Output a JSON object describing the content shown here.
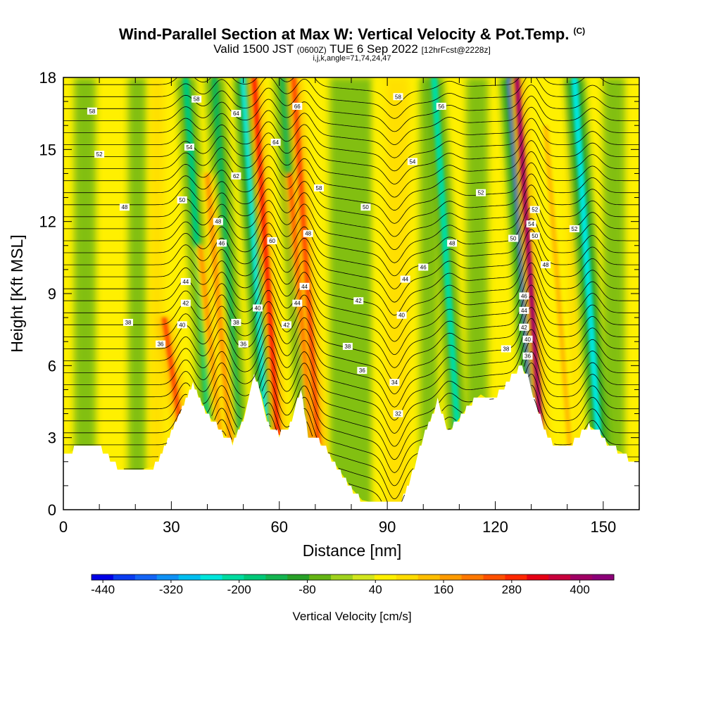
{
  "header": {
    "title": "Wind-Parallel Section at Max W: Vertical Velocity & Pot.Temp.",
    "copyright": "(C)",
    "valid_main": "Valid 1500 JST",
    "valid_utc": "(0600Z)",
    "valid_date": "TUE 6 Sep 2022",
    "forecast": "[12hrFcst@2228z]",
    "indices": "i,j,k,angle=71,74,24,47"
  },
  "chart_data": {
    "type": "heatmap",
    "title": "Wind-Parallel Section at Max W: Vertical Velocity & Pot.Temp.",
    "xlabel": "Distance [nm]",
    "ylabel": "Height [Kft MSL]",
    "xlim": [
      0,
      160
    ],
    "ylim": [
      0,
      18
    ],
    "xticks": [
      0,
      30,
      60,
      90,
      120,
      150
    ],
    "yticks": [
      0,
      3,
      6,
      9,
      12,
      15,
      18
    ],
    "colorbar": {
      "label": "Vertical Velocity [cm/s]",
      "tick_labels": [
        -440,
        -320,
        -200,
        -80,
        40,
        160,
        280,
        400
      ],
      "min": -460,
      "max": 460,
      "colors": [
        "#0000e6",
        "#0a3cf0",
        "#1464f5",
        "#0f91f5",
        "#00bef0",
        "#00e6dc",
        "#00dca0",
        "#00c878",
        "#14b450",
        "#28a028",
        "#64b414",
        "#a0d21e",
        "#d2e61e",
        "#fff000",
        "#ffdc00",
        "#ffbe00",
        "#ff9b00",
        "#ff7800",
        "#ff5000",
        "#ff2800",
        "#e60014",
        "#c8003c",
        "#a00064",
        "#8c0078"
      ]
    },
    "terrain_kft": {
      "x": [
        0,
        4,
        8,
        10,
        15,
        18,
        20,
        25,
        28,
        30,
        33,
        36,
        40,
        44,
        47,
        50,
        53,
        55,
        57,
        60,
        63,
        66,
        68,
        70,
        73,
        76,
        80,
        83,
        86,
        90,
        94,
        97,
        100,
        104,
        107,
        110,
        113,
        116,
        119,
        122,
        125,
        127,
        129,
        131,
        134,
        137,
        140,
        143,
        146,
        149,
        152,
        155,
        158,
        160
      ],
      "y": [
        2.2,
        2.6,
        2.6,
        2.6,
        1.8,
        1.6,
        1.6,
        1.8,
        2.5,
        3.2,
        4.2,
        5.2,
        4.0,
        3.2,
        2.8,
        3.8,
        5.6,
        4.8,
        3.5,
        3.1,
        3.5,
        5.0,
        3.0,
        3.0,
        2.5,
        1.8,
        0.9,
        0.4,
        0.3,
        0.3,
        0.3,
        1.5,
        3.0,
        4.5,
        3.2,
        3.8,
        4.4,
        4.8,
        4.5,
        5.0,
        5.6,
        6.0,
        5.5,
        4.5,
        3.2,
        2.6,
        2.5,
        3.0,
        3.5,
        3.2,
        2.6,
        2.4,
        2.0,
        2.0
      ]
    },
    "updrafts": [
      {
        "x": 32,
        "w": 230,
        "top": 8
      },
      {
        "x": 42,
        "w": 160,
        "top": 11
      },
      {
        "x": 44,
        "w": 180,
        "top": 14
      },
      {
        "x": 57,
        "w": 280,
        "top": 18
      },
      {
        "x": 67,
        "w": 260,
        "top": 14
      },
      {
        "x": 68,
        "w": 240,
        "top": 18
      },
      {
        "x": 130,
        "w": 420,
        "top": 18
      },
      {
        "x": 138,
        "w": 120,
        "top": 16
      }
    ],
    "downdrafts": [
      {
        "x": 38,
        "w": -160
      },
      {
        "x": 46,
        "w": -140
      },
      {
        "x": 54,
        "w": -240
      },
      {
        "x": 65,
        "w": -140
      },
      {
        "x": 107,
        "w": -200
      },
      {
        "x": 128,
        "w": -380
      },
      {
        "x": 146,
        "w": -260
      }
    ],
    "contour_labels": [
      {
        "text": "58",
        "x": 8,
        "y": 16.6
      },
      {
        "text": "52",
        "x": 10,
        "y": 14.8
      },
      {
        "text": "48",
        "x": 17,
        "y": 12.6
      },
      {
        "text": "38",
        "x": 18,
        "y": 7.8
      },
      {
        "text": "36",
        "x": 27,
        "y": 6.9
      },
      {
        "text": "58",
        "x": 37,
        "y": 17.1
      },
      {
        "text": "54",
        "x": 35,
        "y": 15.1
      },
      {
        "text": "50",
        "x": 33,
        "y": 12.9
      },
      {
        "text": "44",
        "x": 34,
        "y": 9.5
      },
      {
        "text": "42",
        "x": 34,
        "y": 8.6
      },
      {
        "text": "40",
        "x": 33,
        "y": 7.7
      },
      {
        "text": "64",
        "x": 48,
        "y": 16.5
      },
      {
        "text": "62",
        "x": 48,
        "y": 13.9
      },
      {
        "text": "48",
        "x": 43,
        "y": 12.0
      },
      {
        "text": "46",
        "x": 44,
        "y": 11.1
      },
      {
        "text": "38",
        "x": 48,
        "y": 7.8
      },
      {
        "text": "36",
        "x": 50,
        "y": 6.9
      },
      {
        "text": "40",
        "x": 54,
        "y": 8.4
      },
      {
        "text": "64",
        "x": 59,
        "y": 15.3
      },
      {
        "text": "60",
        "x": 58,
        "y": 11.2
      },
      {
        "text": "66",
        "x": 65,
        "y": 16.8
      },
      {
        "text": "58",
        "x": 71,
        "y": 13.4
      },
      {
        "text": "48",
        "x": 68,
        "y": 11.5
      },
      {
        "text": "44",
        "x": 67,
        "y": 9.3
      },
      {
        "text": "44",
        "x": 65,
        "y": 8.6
      },
      {
        "text": "42",
        "x": 62,
        "y": 7.7
      },
      {
        "text": "58",
        "x": 93,
        "y": 17.2
      },
      {
        "text": "56",
        "x": 105,
        "y": 16.8
      },
      {
        "text": "54",
        "x": 97,
        "y": 14.5
      },
      {
        "text": "50",
        "x": 84,
        "y": 12.6
      },
      {
        "text": "52",
        "x": 116,
        "y": 13.2
      },
      {
        "text": "48",
        "x": 108,
        "y": 11.1
      },
      {
        "text": "46",
        "x": 100,
        "y": 10.1
      },
      {
        "text": "44",
        "x": 95,
        "y": 9.6
      },
      {
        "text": "42",
        "x": 82,
        "y": 8.7
      },
      {
        "text": "40",
        "x": 94,
        "y": 8.1
      },
      {
        "text": "38",
        "x": 79,
        "y": 6.8
      },
      {
        "text": "36",
        "x": 83,
        "y": 5.8
      },
      {
        "text": "34",
        "x": 92,
        "y": 5.3
      },
      {
        "text": "32",
        "x": 93,
        "y": 4.0
      },
      {
        "text": "50",
        "x": 125,
        "y": 11.3
      },
      {
        "text": "54",
        "x": 130,
        "y": 11.9
      },
      {
        "text": "52",
        "x": 131,
        "y": 12.5
      },
      {
        "text": "50",
        "x": 131,
        "y": 11.4
      },
      {
        "text": "48",
        "x": 134,
        "y": 10.2
      },
      {
        "text": "52",
        "x": 142,
        "y": 11.7
      },
      {
        "text": "46",
        "x": 128,
        "y": 8.9
      },
      {
        "text": "44",
        "x": 128,
        "y": 8.3
      },
      {
        "text": "42",
        "x": 128,
        "y": 7.6
      },
      {
        "text": "40",
        "x": 129,
        "y": 7.1
      },
      {
        "text": "38",
        "x": 123,
        "y": 6.7
      },
      {
        "text": "36",
        "x": 129,
        "y": 6.4
      }
    ]
  }
}
